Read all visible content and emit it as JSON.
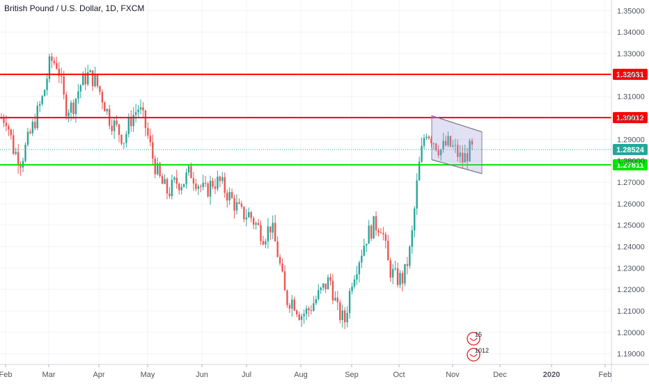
{
  "chart_data": {
    "type": "candlestick",
    "title": "British Pound / U.S. Dollar, 1D, FXCM",
    "ylim": [
      1.185,
      1.355
    ],
    "x_ticks": [
      "Feb",
      "Mar",
      "Apr",
      "May",
      "Jun",
      "Jul",
      "Aug",
      "Sep",
      "Oct",
      "Nov",
      "Dec",
      "2020",
      "Feb"
    ],
    "y_ticks": [
      "1.35000",
      "1.34000",
      "1.33000",
      "1.32000",
      "1.31000",
      "1.30000",
      "1.29000",
      "1.28000",
      "1.27000",
      "1.26000",
      "1.25000",
      "1.24000",
      "1.23000",
      "1.22000",
      "1.21000",
      "1.20000",
      "1.19000"
    ],
    "grid": true,
    "colors": {
      "up": "#26a69a",
      "down": "#ef5350",
      "resistance": "#ff0000",
      "support": "#00e600",
      "last_price": "#26a69a",
      "channel": "#9c9cd8"
    },
    "horizontal_lines": [
      {
        "label": "1.32031",
        "value": 1.32031,
        "color": "#ff0000",
        "role": "resistance"
      },
      {
        "label": "1.30012",
        "value": 1.30012,
        "color": "#ff0000",
        "role": "resistance"
      },
      {
        "label": "1.27811",
        "value": 1.27811,
        "color": "#00e600",
        "role": "support"
      }
    ],
    "last_price": {
      "label": "1.28524",
      "value": 1.28524
    },
    "anchor_prices": [
      1.3,
      1.3,
      1.285,
      1.28,
      1.29,
      1.3,
      1.31,
      1.327,
      1.325,
      1.305,
      1.305,
      1.315,
      1.32,
      1.318,
      1.31,
      1.3,
      1.295,
      1.29,
      1.3,
      1.305,
      1.295,
      1.28,
      1.27,
      1.265,
      1.27,
      1.27,
      1.275,
      1.27,
      1.265,
      1.27,
      1.27,
      1.265,
      1.26,
      1.255,
      1.255,
      1.25,
      1.245,
      1.25,
      1.235,
      1.215,
      1.215,
      1.208,
      1.21,
      1.215,
      1.22,
      1.225,
      1.21,
      1.205,
      1.225,
      1.235,
      1.245,
      1.25,
      1.25,
      1.23,
      1.225,
      1.225,
      1.24,
      1.275,
      1.295,
      1.29,
      1.285,
      1.288,
      1.285,
      1.28,
      1.285
    ],
    "annotations": [
      {
        "type": "parallel-channel",
        "description": "falling channel drawn over the last weeks of price action"
      },
      {
        "type": "event-flags",
        "labels": [
          "15",
          "10",
          "12"
        ]
      }
    ]
  }
}
